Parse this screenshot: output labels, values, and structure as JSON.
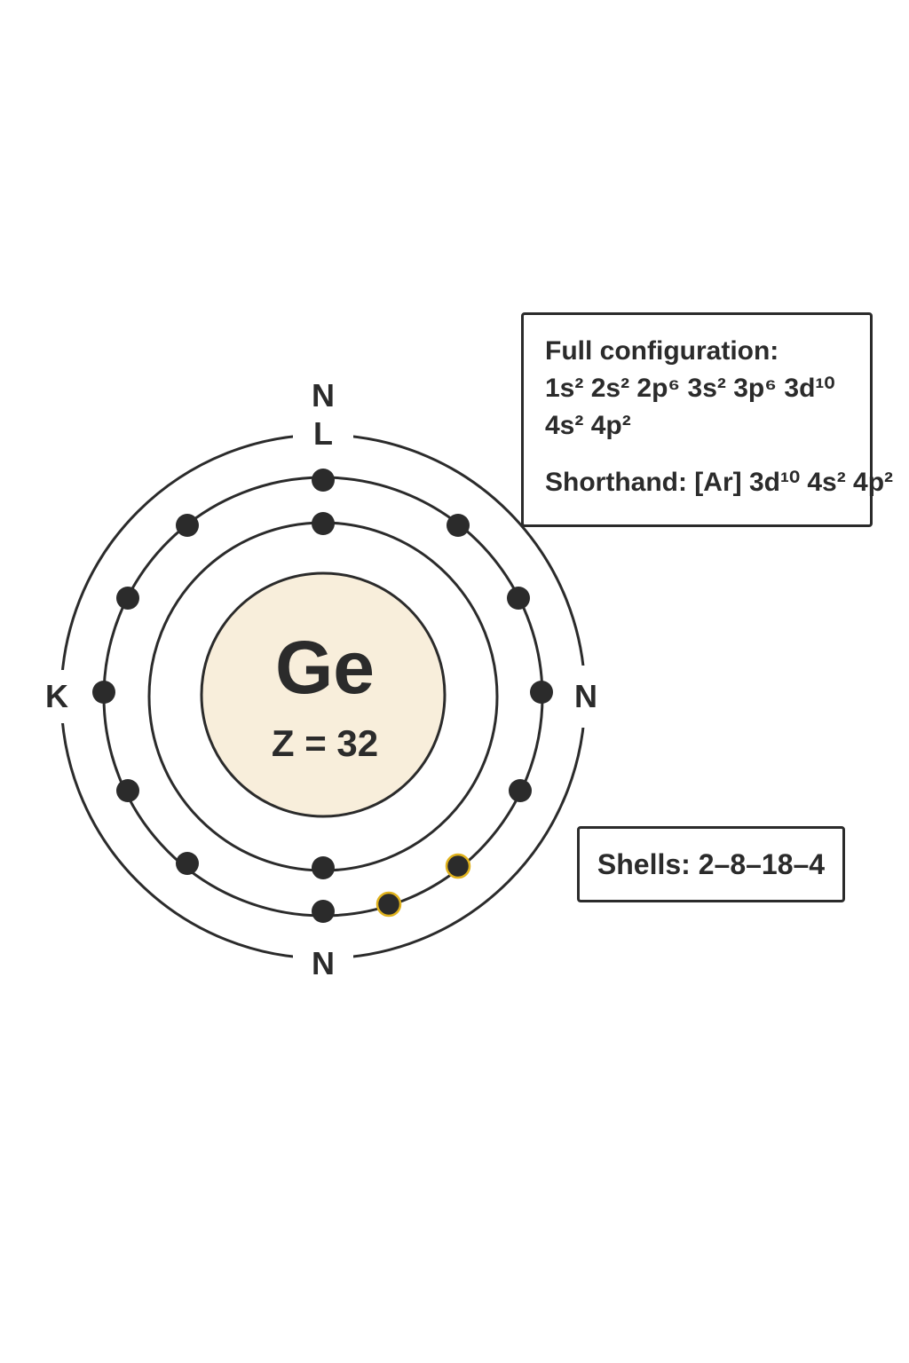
{
  "atom": {
    "symbol": "Ge",
    "atomic_number_label": "Z = 32"
  },
  "shell_labels": {
    "top": "N",
    "top_inner": "L",
    "left": "K",
    "right": "N",
    "bottom": "N"
  },
  "configuration": {
    "title": "Full configuration:",
    "line1": "1s² 2s² 2p⁶ 3s² 3p⁶ 3d¹⁰",
    "line2": "4s² 4p²",
    "shorthand": "Shorthand: [Ar] 3d¹⁰ 4s² 4p²"
  },
  "shells_summary": "Shells: 2–8–18–4",
  "colors": {
    "ink": "#2b2b2b",
    "nucleus_fill": "#f8eedb",
    "valence_highlight": "#e0b21d"
  }
}
